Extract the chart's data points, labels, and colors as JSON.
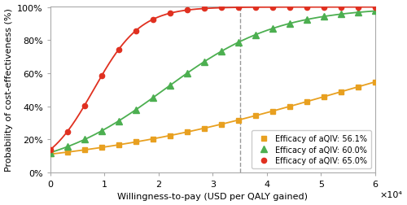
{
  "title": "",
  "xlabel": "Willingness-to-pay (USD per QALY gained)",
  "ylabel": "Probability of cost-effectiveness (%)",
  "xlim": [
    0,
    60000
  ],
  "ylim": [
    0,
    1.005
  ],
  "xticks": [
    0,
    10000,
    20000,
    30000,
    40000,
    50000,
    60000
  ],
  "xtick_labels": [
    "0",
    "1",
    "2",
    "3",
    "4",
    "5",
    "6"
  ],
  "xscale_label": "×10⁴",
  "yticks": [
    0,
    0.2,
    0.4,
    0.6,
    0.8,
    1.0
  ],
  "ytick_labels": [
    "0%",
    "20%",
    "40%",
    "60%",
    "80%",
    "100%"
  ],
  "dashed_vline_x": 35000,
  "series": [
    {
      "label": "Efficacy of aQIV: 56.1%",
      "color": "#E8A020",
      "marker": "s",
      "marker_size": 4.5,
      "infl": 55000,
      "steep": 3.8e-05
    },
    {
      "label": "Efficacy of aQIV: 60.0%",
      "color": "#4CAF50",
      "marker": "^",
      "marker_size": 5.5,
      "infl": 21000,
      "steep": 9.5e-05
    },
    {
      "label": "Efficacy of aQIV: 65.0%",
      "color": "#E03020",
      "marker": "o",
      "marker_size": 4.5,
      "infl": 8000,
      "steep": 0.00023
    }
  ],
  "n_markers": 20,
  "background_color": "#ffffff",
  "figsize": [
    5.0,
    2.53
  ],
  "dpi": 100
}
